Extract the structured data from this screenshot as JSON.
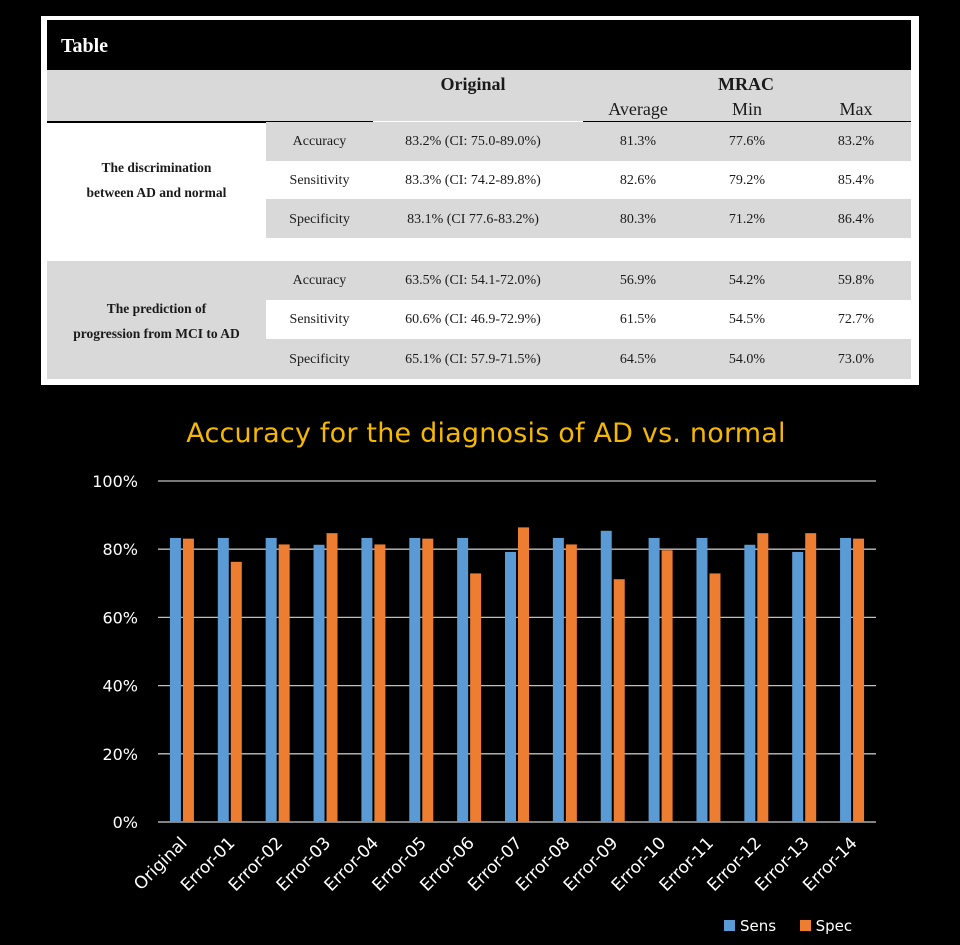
{
  "table": {
    "title": "Table",
    "header": {
      "original": "Original",
      "mrac": "MRAC",
      "average": "Average",
      "min": "Min",
      "max": "Max"
    },
    "groups": [
      {
        "label_line1": "The discrimination",
        "label_line2": "between AD and normal",
        "rows": [
          {
            "metric": "Accuracy",
            "original": "83.2% (CI: 75.0-89.0%)",
            "average": "81.3%",
            "min": "77.6%",
            "max": "83.2%"
          },
          {
            "metric": "Sensitivity",
            "original": "83.3% (CI: 74.2-89.8%)",
            "average": "82.6%",
            "min": "79.2%",
            "max": "85.4%"
          },
          {
            "metric": "Specificity",
            "original": "83.1% (CI 77.6-83.2%)",
            "average": "80.3%",
            "min": "71.2%",
            "max": "86.4%"
          }
        ]
      },
      {
        "label_line1": "The prediction of",
        "label_line2": "progression from MCI to AD",
        "rows": [
          {
            "metric": "Accuracy",
            "original": "63.5% (CI: 54.1-72.0%)",
            "average": "56.9%",
            "min": "54.2%",
            "max": "59.8%"
          },
          {
            "metric": "Sensitivity",
            "original": "60.6% (CI: 46.9-72.9%)",
            "average": "61.5%",
            "min": "54.5%",
            "max": "72.7%"
          },
          {
            "metric": "Specificity",
            "original": "65.1% (CI: 57.9-71.5%)",
            "average": "64.5%",
            "min": "54.0%",
            "max": "73.0%"
          }
        ]
      }
    ]
  },
  "chart_data": {
    "type": "bar",
    "title": "Accuracy for the diagnosis of AD vs. normal",
    "categories": [
      "Original",
      "Error-01",
      "Error-02",
      "Error-03",
      "Error-04",
      "Error-05",
      "Error-06",
      "Error-07",
      "Error-08",
      "Error-09",
      "Error-10",
      "Error-11",
      "Error-12",
      "Error-13",
      "Error-14"
    ],
    "series": [
      {
        "name": "Sens",
        "color": "#5b9bd5",
        "values": [
          83.3,
          83.3,
          83.3,
          81.3,
          83.3,
          83.3,
          83.3,
          79.2,
          83.3,
          85.4,
          83.3,
          83.3,
          81.3,
          79.2,
          83.3
        ]
      },
      {
        "name": "Spec",
        "color": "#ed7d31",
        "values": [
          83.1,
          76.3,
          81.4,
          84.7,
          81.4,
          83.1,
          72.9,
          86.4,
          81.4,
          71.2,
          79.7,
          72.9,
          84.7,
          84.7,
          83.1
        ]
      }
    ],
    "yticks": [
      "0%",
      "20%",
      "40%",
      "60%",
      "80%",
      "100%"
    ],
    "ylim": [
      0,
      100
    ],
    "xlabel": "",
    "ylabel": "",
    "grid": true,
    "legend": "bottom-right"
  }
}
